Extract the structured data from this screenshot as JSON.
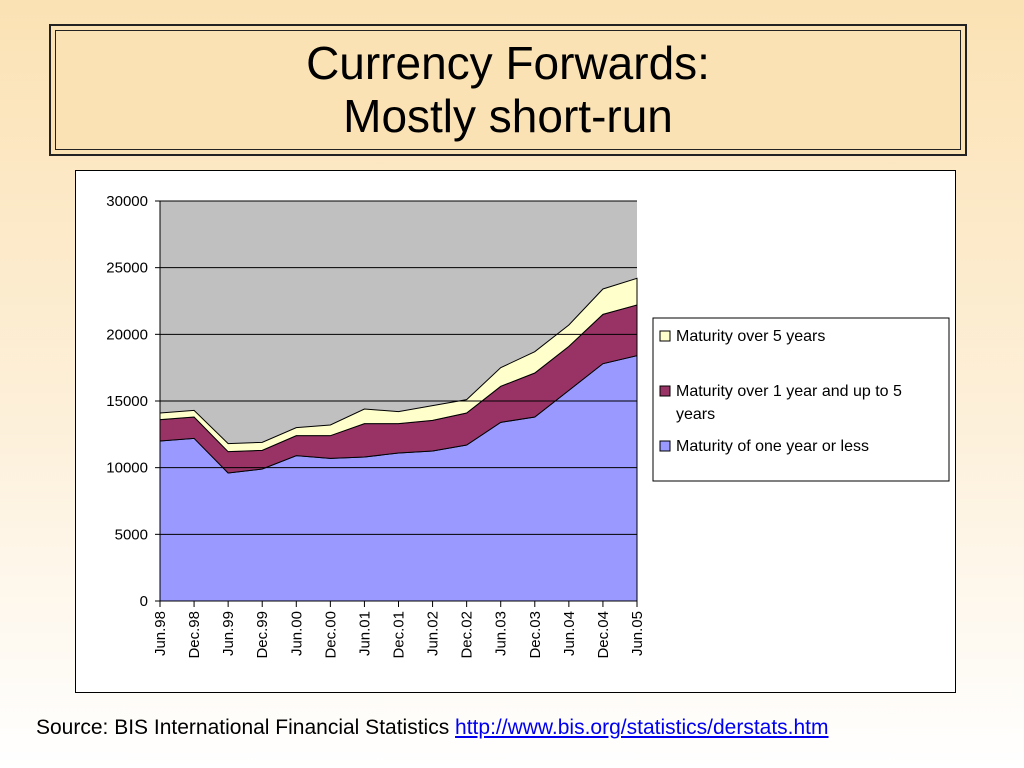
{
  "title": {
    "line1": "Currency Forwards:",
    "line2": "Mostly short-run"
  },
  "source": {
    "text": "Source: BIS International Financial Statistics",
    "link": "http://www.bis.org/statistics/derstats.htm"
  },
  "colors": {
    "plot_bg": "#c0c0c0",
    "short": "#9999ff",
    "mid": "#993366",
    "long": "#ffffcc"
  },
  "chart_data": {
    "type": "area",
    "stacked": true,
    "categories": [
      "Jun.98",
      "Dec.98",
      "Jun.99",
      "Dec.99",
      "Jun.00",
      "Dec.00",
      "Jun.01",
      "Dec.01",
      "Jun.02",
      "Dec.02",
      "Jun.03",
      "Dec.03",
      "Jun.04",
      "Dec.04",
      "Jun.05"
    ],
    "series": [
      {
        "name": "Maturity of one year or less",
        "color": "#9999ff",
        "values": [
          12000,
          12200,
          9600,
          9900,
          10900,
          10700,
          10800,
          11100,
          11250,
          11700,
          13400,
          13800,
          15800,
          17800,
          18400
        ]
      },
      {
        "name": "Maturity over 1 year and up to 5 years",
        "color": "#993366",
        "values": [
          1600,
          1600,
          1600,
          1400,
          1500,
          1700,
          2500,
          2200,
          2300,
          2400,
          2700,
          3300,
          3300,
          3700,
          3800
        ]
      },
      {
        "name": "Maturity over 5 years",
        "color": "#ffffcc",
        "values": [
          500,
          500,
          600,
          600,
          600,
          800,
          1100,
          900,
          1100,
          1000,
          1400,
          1600,
          1600,
          1900,
          2000
        ]
      }
    ],
    "ylim": [
      0,
      30000
    ],
    "yticks": [
      "0",
      "5000",
      "10000",
      "15000",
      "20000",
      "25000",
      "30000"
    ],
    "grid": true,
    "legend_position": "right"
  }
}
